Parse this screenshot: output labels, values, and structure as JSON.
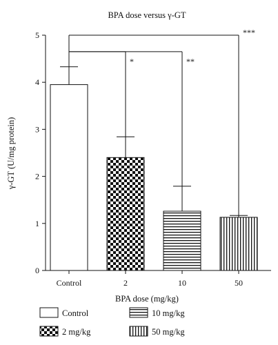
{
  "chart_data": {
    "type": "bar",
    "title": "BPA dose versus γ-GT",
    "xlabel": "BPA dose (mg/kg)",
    "ylabel": "γ-GT (U/mg protein)",
    "categories": [
      "Control",
      "2",
      "10",
      "50"
    ],
    "values": [
      3.95,
      2.4,
      1.26,
      1.13
    ],
    "errors": [
      0.38,
      0.44,
      0.53,
      0.04
    ],
    "ylim": [
      0,
      5
    ],
    "yticks": [
      "0",
      "1",
      "2",
      "3",
      "4",
      "5"
    ],
    "grid": false,
    "legend_position": "bottom",
    "legend": [
      {
        "label": "Control",
        "pattern": "blank"
      },
      {
        "label": "10 mg/kg",
        "pattern": "horizontal"
      },
      {
        "label": "2 mg/kg",
        "pattern": "checker"
      },
      {
        "label": "50 mg/kg",
        "pattern": "vertical"
      }
    ],
    "significance": [
      {
        "label": "*",
        "target": "2",
        "y": 4.65
      },
      {
        "label": "**",
        "target": "10",
        "y": 4.65
      },
      {
        "label": "***",
        "target": "50",
        "y": 5.0
      }
    ]
  }
}
